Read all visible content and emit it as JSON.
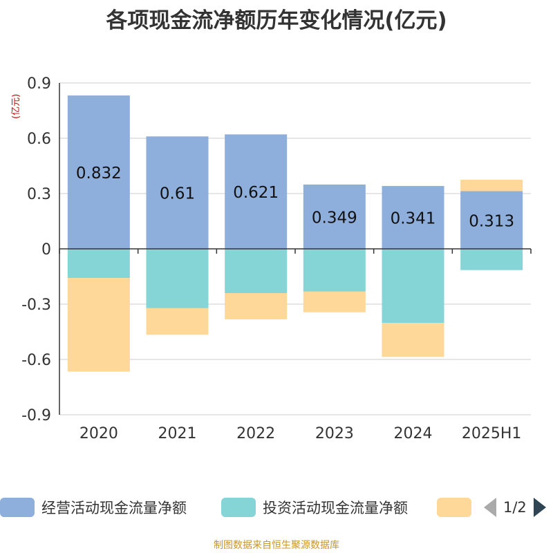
{
  "title": "各项现金流净额历年变化情况(亿元)",
  "unit_label": "(亿元)",
  "source": "制图数据来自恒生聚源数据库",
  "legend": {
    "items": [
      {
        "label": "经营活动现金流量净额",
        "color": "#8eaedb"
      },
      {
        "label": "投资活动现金流量净额",
        "color": "#86d5d6"
      },
      {
        "label": "",
        "color": "#fdd898"
      }
    ],
    "page": "1/2"
  },
  "chart_data": {
    "type": "bar",
    "stacked": true,
    "categories": [
      "2020",
      "2021",
      "2022",
      "2023",
      "2024",
      "2025H1"
    ],
    "ylim": [
      -0.9,
      0.9
    ],
    "yticks": [
      0.9,
      0.6,
      0.3,
      0,
      -0.3,
      -0.6,
      -0.9
    ],
    "ytick_labels": [
      "0.9",
      "0.6",
      "0.3",
      "0",
      "-0.3",
      "-0.6",
      "-0.9"
    ],
    "grid": true,
    "series": [
      {
        "name": "经营活动现金流量净额",
        "color": "#8eaedb",
        "values": [
          0.832,
          0.61,
          0.621,
          0.349,
          0.341,
          0.313
        ],
        "labels": [
          "0.832",
          "0.61",
          "0.621",
          "0.349",
          "0.341",
          "0.313"
        ]
      },
      {
        "name": "投资活动现金流量净额",
        "color": "#86d5d6",
        "values": [
          -0.158,
          -0.322,
          -0.24,
          -0.232,
          -0.402,
          -0.115
        ]
      },
      {
        "color": "#fdd898",
        "values": [
          -0.508,
          -0.144,
          -0.142,
          -0.112,
          -0.184,
          0.062
        ]
      }
    ]
  }
}
